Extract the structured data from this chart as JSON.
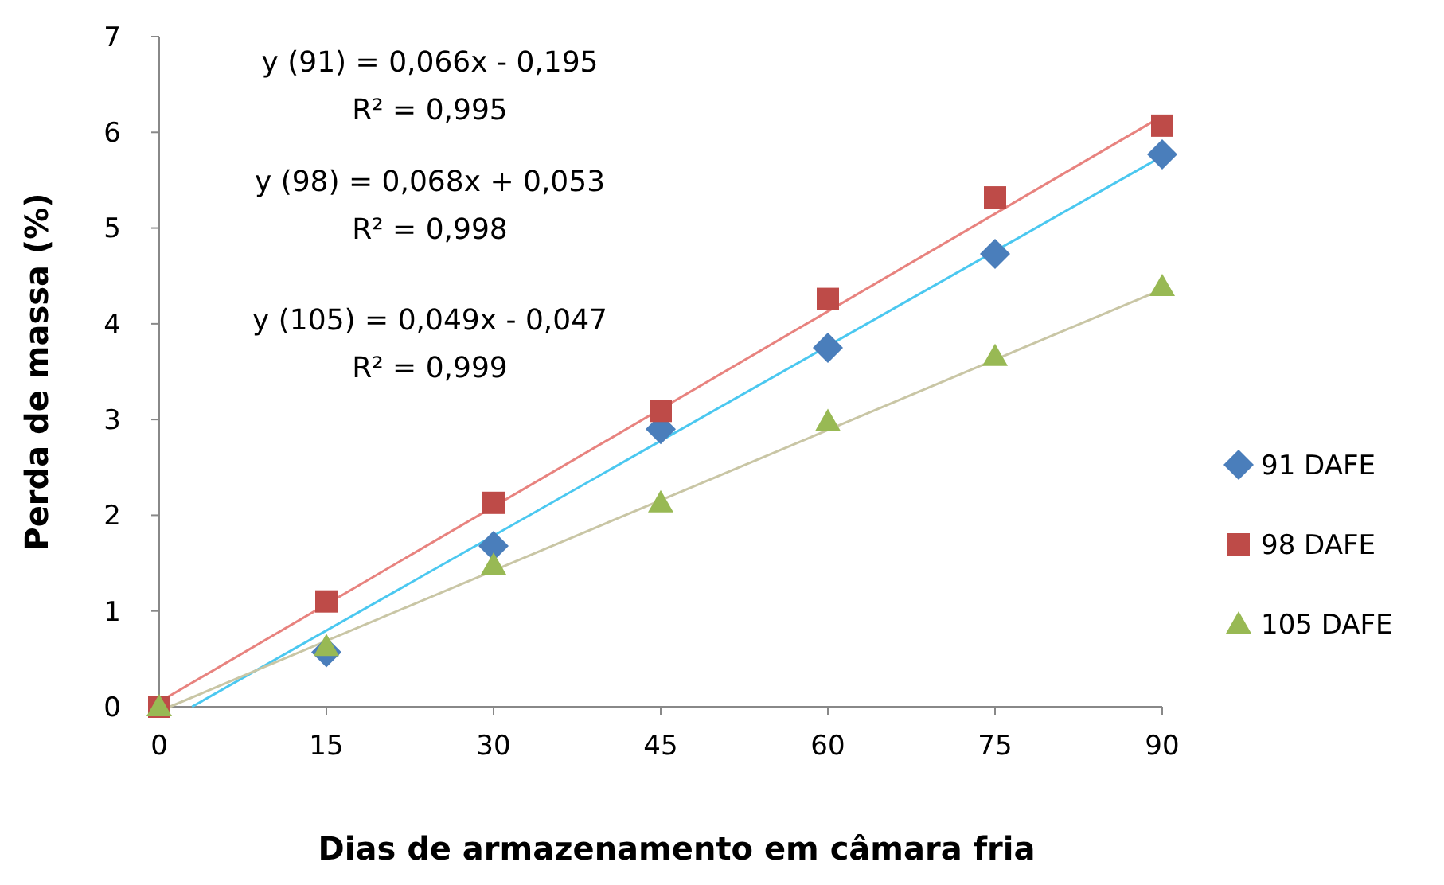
{
  "chart_data": {
    "type": "scatter",
    "xlabel": "Dias de armazenamento em câmara fria",
    "ylabel": "Perda de massa (%)",
    "x": [
      0,
      15,
      30,
      45,
      60,
      75,
      90
    ],
    "xlim": [
      0,
      90
    ],
    "xticks": [
      0,
      15,
      30,
      45,
      60,
      75,
      90
    ],
    "ylim": [
      0,
      7
    ],
    "yticks": [
      0,
      1,
      2,
      3,
      4,
      5,
      6,
      7
    ],
    "legend": "right",
    "grid": false,
    "series": [
      {
        "type": "line",
        "color": "#4bc8f0",
        "x": [
          2.95,
          90
        ],
        "values": [
          0,
          5.75
        ],
        "marker": "none"
      },
      {
        "type": "line",
        "color": "#e8837f",
        "x": [
          0,
          90
        ],
        "values": [
          0.05,
          6.17
        ],
        "marker": "none"
      },
      {
        "type": "line",
        "color": "#c9c6a5",
        "x": [
          0.96,
          90
        ],
        "values": [
          0,
          4.36
        ],
        "marker": "none"
      },
      {
        "name": "91 DAFE",
        "color": "#4a7ebb",
        "marker": "diamond",
        "values": [
          null,
          0.57,
          1.68,
          2.9,
          3.75,
          4.73,
          5.77
        ]
      },
      {
        "name": "98 DAFE",
        "color": "#be4b48",
        "marker": "square",
        "values": [
          0,
          1.1,
          2.13,
          3.09,
          4.26,
          5.32,
          6.07
        ]
      },
      {
        "name": "105 DAFE",
        "color": "#98b954",
        "marker": "triangle",
        "values": [
          0,
          0.63,
          1.48,
          2.13,
          2.98,
          3.66,
          4.39
        ]
      }
    ],
    "annotations": [
      "y (91) = 0,066x - 0,195",
      "R² = 0,995",
      "y (98) = 0,068x + 0,053",
      "R² = 0,998",
      "y (105) = 0,049x - 0,047",
      "R² = 0,999"
    ]
  }
}
